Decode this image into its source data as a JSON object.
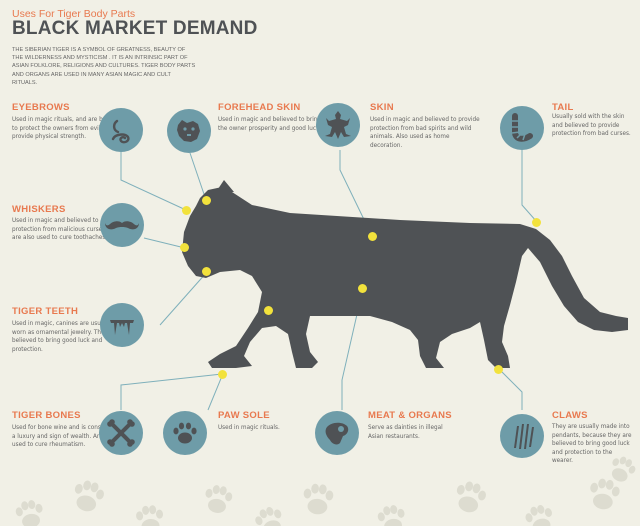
{
  "header": {
    "subtitle": "Uses For Tiger Body Parts",
    "title": "BLACK MARKET DEMAND",
    "intro": "THE SIBERIAN TIGER IS A SYMBOL OF GREATNESS, BEAUTY OF THE WILDERNESS AND MYSTICISM . IT IS AN INTRINSIC PART OF ASIAN FOLKLORE, RELIGIONS AND CULTURES. TIGER BODY PARTS AND ORGANS ARE USED IN MANY ASIAN MAGIC AND CULT RITUALS."
  },
  "parts": {
    "eyebrows": {
      "title": "EYEBROWS",
      "desc": "Used in magic rituals, and are believed to protect the owners from evil and provide physical strength.",
      "icon": "eyebrow-icon"
    },
    "forehead": {
      "title": "FOREHEAD SKIN",
      "desc": "Used in magic and believed to bring the owner prosperity and good luck.",
      "icon": "tiger-head-icon"
    },
    "skin": {
      "title": "SKIN",
      "desc": "Used in magic and believed to provide protection from bad spirits and wild animals. Also used as home decoration.",
      "icon": "pelt-icon"
    },
    "tail": {
      "title": "TAIL",
      "desc": "Usually sold with the skin and believed to provide protection from bad curses.",
      "icon": "tail-icon"
    },
    "whiskers": {
      "title": "WHISKERS",
      "desc": "Used in magic and believed to protection from malicious curses. They are also used to cure toothaches.",
      "icon": "moustache-icon"
    },
    "teeth": {
      "title": "TIGER TEETH",
      "desc": "Used in magic, canines are usually worn as ornamental jewelry. They are believed to bring good luck and protection.",
      "icon": "fangs-icon"
    },
    "bones": {
      "title": "TIGER BONES",
      "desc": "Used for bone wine and is considered a luxury and sign of wealth. Are also used to cure rheumatism.",
      "icon": "crossbones-icon"
    },
    "paw": {
      "title": "PAW SOLE",
      "desc": "Used in magic rituals.",
      "icon": "paw-icon"
    },
    "meat": {
      "title": "MEAT & ORGANS",
      "desc": "Serve as dainties in illegal Asian restaurants.",
      "icon": "steak-icon"
    },
    "claws": {
      "title": "CLAWS",
      "desc": "They are usually made into pendants, because they are believed to bring good luck and protection to the wearer.",
      "icon": "claw-marks-icon"
    }
  },
  "colors": {
    "accent": "#e8794f",
    "tiger": "#4f5255",
    "icon_circle": "#6e9ca8",
    "dot": "#f2e23c",
    "background": "#f1f0e6"
  }
}
